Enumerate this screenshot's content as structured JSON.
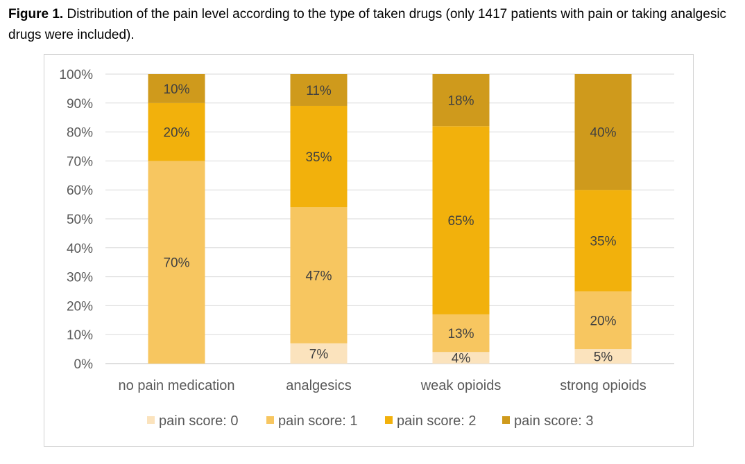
{
  "caption": {
    "label": "Figure 1.",
    "text": " Distribution of the pain level according to the type of taken drugs (only 1417 patients with pain or taking analgesic drugs were included)."
  },
  "chart_data": {
    "type": "bar",
    "stacked": true,
    "categories": [
      "no pain medication",
      "analgesics",
      "weak opioids",
      "strong opioids"
    ],
    "series": [
      {
        "name": "pain score: 0",
        "values": [
          0,
          7,
          4,
          5
        ],
        "color": "#fbe3bd"
      },
      {
        "name": "pain score: 1",
        "values": [
          70,
          47,
          13,
          20
        ],
        "color": "#f7c660"
      },
      {
        "name": "pain score: 2",
        "values": [
          20,
          35,
          65,
          35
        ],
        "color": "#f2b10c"
      },
      {
        "name": "pain score: 3",
        "values": [
          10,
          11,
          18,
          40
        ],
        "color": "#cf9a1c"
      }
    ],
    "data_labels": [
      [
        "",
        "7%",
        "4%",
        "5%"
      ],
      [
        "70%",
        "47%",
        "13%",
        "20%"
      ],
      [
        "20%",
        "35%",
        "65%",
        "35%"
      ],
      [
        "10%",
        "11%",
        "18%",
        "40%"
      ]
    ],
    "y_ticks": [
      "0%",
      "10%",
      "20%",
      "30%",
      "40%",
      "50%",
      "60%",
      "70%",
      "80%",
      "90%",
      "100%"
    ],
    "ylim": [
      0,
      100
    ],
    "grid": true,
    "legend_position": "bottom",
    "xlabel": "",
    "ylabel": ""
  }
}
